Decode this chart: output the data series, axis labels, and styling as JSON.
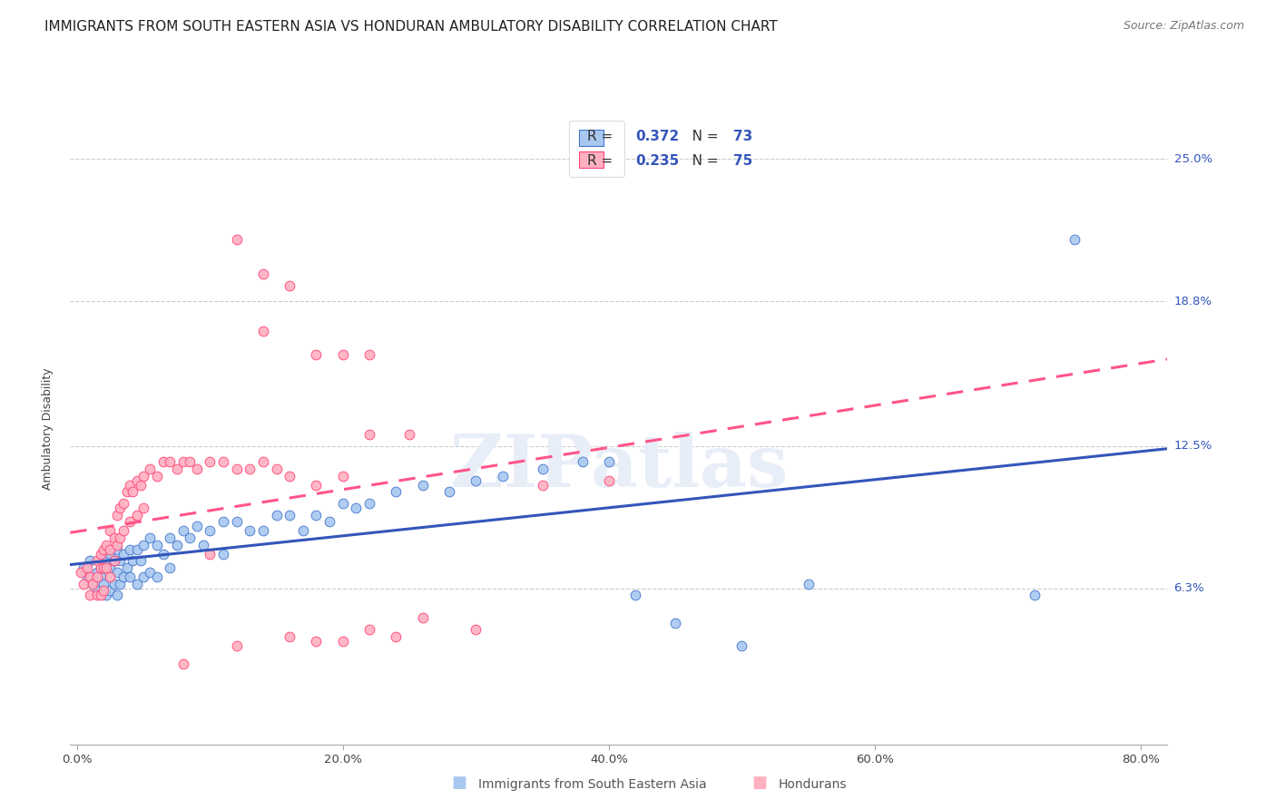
{
  "title": "IMMIGRANTS FROM SOUTH EASTERN ASIA VS HONDURAN AMBULATORY DISABILITY CORRELATION CHART",
  "source": "Source: ZipAtlas.com",
  "xlabel_ticks": [
    "0.0%",
    "20.0%",
    "40.0%",
    "60.0%",
    "80.0%"
  ],
  "xlabel_tick_vals": [
    0.0,
    0.2,
    0.4,
    0.6,
    0.8
  ],
  "ylabel": "Ambulatory Disability",
  "ylabel_ticks": [
    "6.3%",
    "12.5%",
    "18.8%",
    "25.0%"
  ],
  "ylabel_tick_vals": [
    0.063,
    0.125,
    0.188,
    0.25
  ],
  "ylim": [
    -0.005,
    0.27
  ],
  "xlim": [
    -0.005,
    0.82
  ],
  "legend_labels": [
    "Immigrants from South Eastern Asia",
    "Hondurans"
  ],
  "blue_color": "#A8C8F0",
  "pink_color": "#FFB0C0",
  "blue_edge_color": "#4477CC",
  "pink_edge_color": "#FF4477",
  "blue_line_color": "#3355BB",
  "pink_line_color": "#FF5588",
  "R_blue": "0.372",
  "N_blue": "73",
  "R_pink": "0.235",
  "N_pink": "75",
  "blue_scatter_x": [
    0.005,
    0.008,
    0.01,
    0.012,
    0.015,
    0.015,
    0.018,
    0.018,
    0.02,
    0.02,
    0.022,
    0.022,
    0.025,
    0.025,
    0.025,
    0.028,
    0.028,
    0.03,
    0.03,
    0.03,
    0.032,
    0.032,
    0.035,
    0.035,
    0.038,
    0.04,
    0.04,
    0.042,
    0.045,
    0.045,
    0.048,
    0.05,
    0.05,
    0.055,
    0.055,
    0.06,
    0.06,
    0.065,
    0.07,
    0.07,
    0.075,
    0.08,
    0.085,
    0.09,
    0.095,
    0.1,
    0.11,
    0.11,
    0.12,
    0.13,
    0.14,
    0.15,
    0.16,
    0.17,
    0.18,
    0.19,
    0.2,
    0.21,
    0.22,
    0.24,
    0.26,
    0.28,
    0.3,
    0.32,
    0.35,
    0.38,
    0.4,
    0.42,
    0.45,
    0.5,
    0.55,
    0.72,
    0.75
  ],
  "blue_scatter_y": [
    0.072,
    0.068,
    0.075,
    0.065,
    0.07,
    0.062,
    0.075,
    0.068,
    0.078,
    0.065,
    0.075,
    0.06,
    0.078,
    0.072,
    0.062,
    0.075,
    0.065,
    0.08,
    0.07,
    0.06,
    0.075,
    0.065,
    0.078,
    0.068,
    0.072,
    0.08,
    0.068,
    0.075,
    0.08,
    0.065,
    0.075,
    0.082,
    0.068,
    0.085,
    0.07,
    0.082,
    0.068,
    0.078,
    0.085,
    0.072,
    0.082,
    0.088,
    0.085,
    0.09,
    0.082,
    0.088,
    0.092,
    0.078,
    0.092,
    0.088,
    0.088,
    0.095,
    0.095,
    0.088,
    0.095,
    0.092,
    0.1,
    0.098,
    0.1,
    0.105,
    0.108,
    0.105,
    0.11,
    0.112,
    0.115,
    0.118,
    0.118,
    0.06,
    0.048,
    0.038,
    0.065,
    0.06,
    0.215
  ],
  "pink_scatter_x": [
    0.003,
    0.005,
    0.008,
    0.01,
    0.01,
    0.012,
    0.015,
    0.015,
    0.015,
    0.018,
    0.018,
    0.018,
    0.02,
    0.02,
    0.02,
    0.022,
    0.022,
    0.025,
    0.025,
    0.025,
    0.028,
    0.028,
    0.03,
    0.03,
    0.032,
    0.032,
    0.035,
    0.035,
    0.038,
    0.04,
    0.04,
    0.042,
    0.045,
    0.045,
    0.048,
    0.05,
    0.05,
    0.055,
    0.06,
    0.065,
    0.07,
    0.075,
    0.08,
    0.085,
    0.09,
    0.1,
    0.11,
    0.12,
    0.13,
    0.14,
    0.15,
    0.16,
    0.18,
    0.2,
    0.22,
    0.24,
    0.26,
    0.3,
    0.35,
    0.4,
    0.12,
    0.14,
    0.16,
    0.18,
    0.2,
    0.22,
    0.22,
    0.25,
    0.14,
    0.18,
    0.12,
    0.16,
    0.2,
    0.1,
    0.08
  ],
  "pink_scatter_y": [
    0.07,
    0.065,
    0.072,
    0.068,
    0.06,
    0.065,
    0.075,
    0.068,
    0.06,
    0.078,
    0.072,
    0.06,
    0.08,
    0.072,
    0.062,
    0.082,
    0.072,
    0.088,
    0.08,
    0.068,
    0.085,
    0.075,
    0.095,
    0.082,
    0.098,
    0.085,
    0.1,
    0.088,
    0.105,
    0.108,
    0.092,
    0.105,
    0.11,
    0.095,
    0.108,
    0.112,
    0.098,
    0.115,
    0.112,
    0.118,
    0.118,
    0.115,
    0.118,
    0.118,
    0.115,
    0.118,
    0.118,
    0.115,
    0.115,
    0.118,
    0.115,
    0.112,
    0.108,
    0.112,
    0.045,
    0.042,
    0.05,
    0.045,
    0.108,
    0.11,
    0.215,
    0.2,
    0.195,
    0.165,
    0.165,
    0.165,
    0.13,
    0.13,
    0.175,
    0.04,
    0.038,
    0.042,
    0.04,
    0.078,
    0.03
  ],
  "watermark_text": "ZIPatlas",
  "title_fontsize": 11,
  "axis_label_fontsize": 9,
  "tick_fontsize": 9.5,
  "legend_fontsize": 11,
  "source_fontsize": 9
}
